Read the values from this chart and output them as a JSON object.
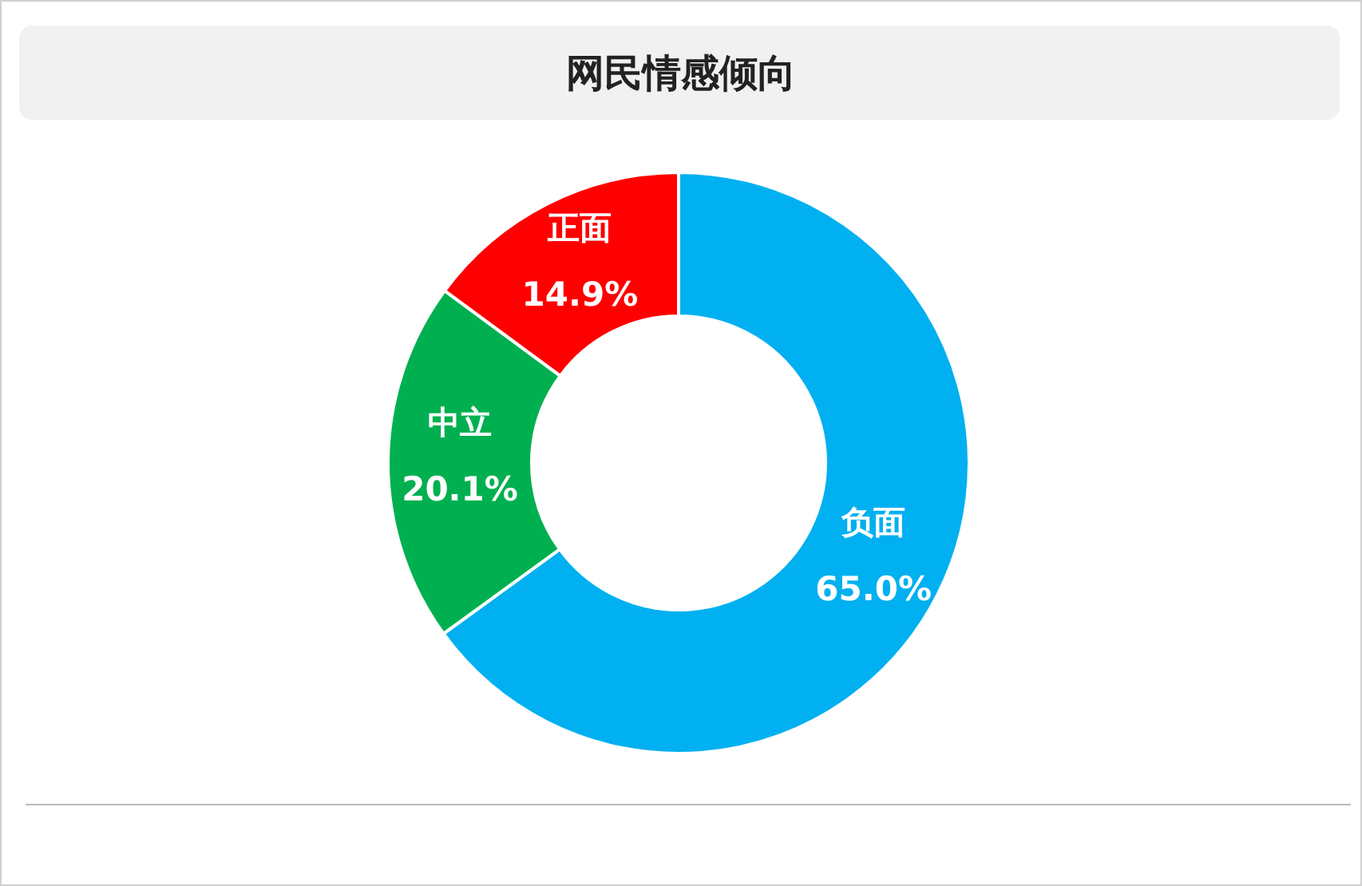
{
  "chart_data": {
    "type": "donut",
    "title": "网民情感倾向",
    "categories": [
      "负面",
      "中立",
      "正面"
    ],
    "values": [
      65.0,
      20.1,
      14.9
    ],
    "value_labels": [
      "65.0%",
      "20.1%",
      "14.9%"
    ],
    "colors": [
      "#00b0f0",
      "#00b050",
      "#ff0000"
    ]
  }
}
